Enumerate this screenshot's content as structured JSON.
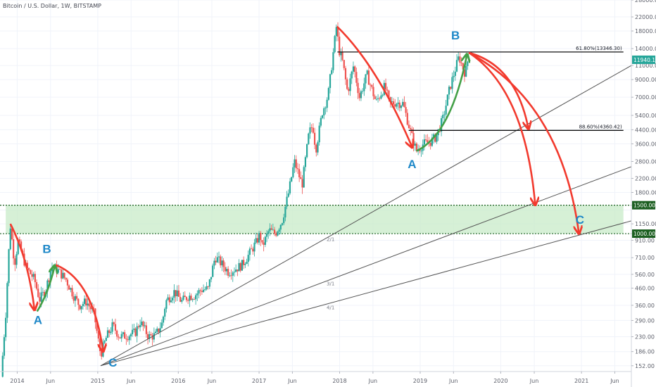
{
  "header": {
    "title": "Bitcoin / U.S. Dollar, 1W, BITSTAMP"
  },
  "colors": {
    "up": "#26a69a",
    "down": "#ef5350",
    "wave_label": "#1e88c8",
    "arrow_red": "#f23a2e",
    "arrow_green": "#43a047",
    "zone_fill": "#c8ebc8",
    "badge_green": "#1b5e20",
    "fan_line": "#555555"
  },
  "chart_data": {
    "type": "candlestick",
    "symbol": "Bitcoin / U.S. Dollar",
    "interval": "1W",
    "exchange": "BITSTAMP",
    "y_scale": "log",
    "ylim": [
      140,
      28000
    ],
    "xlim": [
      "2013-10-15",
      "2021-08-15"
    ],
    "y_ticks": [
      "28000.00",
      "22000.00",
      "18000.00",
      "14000.00",
      "11000.00",
      "9000.00",
      "7000.00",
      "5400.00",
      "4400.00",
      "3600.00",
      "2800.00",
      "2200.00",
      "1800.00",
      "1400.00",
      "1150.00",
      "910.00",
      "710.00",
      "560.00",
      "460.00",
      "360.00",
      "290.00",
      "230.00",
      "186.00",
      "152.00"
    ],
    "x_ticks": [
      {
        "date": "2014-01-01",
        "label": "2014"
      },
      {
        "date": "2014-06-01",
        "label": "Jun"
      },
      {
        "date": "2015-01-01",
        "label": "2015"
      },
      {
        "date": "2015-06-01",
        "label": "Jun"
      },
      {
        "date": "2016-01-01",
        "label": "2016"
      },
      {
        "date": "2016-06-01",
        "label": "Jun"
      },
      {
        "date": "2017-01-01",
        "label": "2017"
      },
      {
        "date": "2017-06-01",
        "label": "Jun"
      },
      {
        "date": "2018-01-01",
        "label": "2018"
      },
      {
        "date": "2018-06-01",
        "label": "Jun"
      },
      {
        "date": "2019-01-01",
        "label": "2019"
      },
      {
        "date": "2019-06-01",
        "label": "Jun"
      },
      {
        "date": "2020-01-01",
        "label": "2020"
      },
      {
        "date": "2020-06-01",
        "label": "Jun"
      },
      {
        "date": "2021-01-01",
        "label": "2021"
      },
      {
        "date": "2021-06-01",
        "label": "Jun"
      }
    ],
    "price_path": [
      [
        "2013-10-20",
        130
      ],
      [
        "2013-11-10",
        320
      ],
      [
        "2013-11-30",
        1150
      ],
      [
        "2013-12-20",
        650
      ],
      [
        "2014-01-05",
        900
      ],
      [
        "2014-02-10",
        620
      ],
      [
        "2014-03-20",
        520
      ],
      [
        "2014-04-12",
        390
      ],
      [
        "2014-05-10",
        450
      ],
      [
        "2014-06-05",
        620
      ],
      [
        "2014-07-01",
        600
      ],
      [
        "2014-08-10",
        520
      ],
      [
        "2014-09-15",
        410
      ],
      [
        "2014-10-10",
        360
      ],
      [
        "2014-11-10",
        380
      ],
      [
        "2014-12-15",
        320
      ],
      [
        "2015-01-14",
        178
      ],
      [
        "2015-02-10",
        230
      ],
      [
        "2015-03-10",
        270
      ],
      [
        "2015-04-10",
        230
      ],
      [
        "2015-05-20",
        235
      ],
      [
        "2015-06-20",
        245
      ],
      [
        "2015-07-12",
        285
      ],
      [
        "2015-08-20",
        230
      ],
      [
        "2015-09-20",
        235
      ],
      [
        "2015-10-20",
        280
      ],
      [
        "2015-11-05",
        380
      ],
      [
        "2015-12-15",
        440
      ],
      [
        "2016-01-15",
        380
      ],
      [
        "2016-02-15",
        410
      ],
      [
        "2016-03-15",
        415
      ],
      [
        "2016-04-15",
        450
      ],
      [
        "2016-05-15",
        455
      ],
      [
        "2016-06-16",
        720
      ],
      [
        "2016-07-15",
        650
      ],
      [
        "2016-08-15",
        580
      ],
      [
        "2016-09-15",
        605
      ],
      [
        "2016-10-15",
        640
      ],
      [
        "2016-11-15",
        740
      ],
      [
        "2016-12-20",
        890
      ],
      [
        "2017-01-05",
        1000
      ],
      [
        "2017-01-15",
        830
      ],
      [
        "2017-02-15",
        1050
      ],
      [
        "2017-03-15",
        1000
      ],
      [
        "2017-04-15",
        1200
      ],
      [
        "2017-05-15",
        1800
      ],
      [
        "2017-06-10",
        2800
      ],
      [
        "2017-07-15",
        2000
      ],
      [
        "2017-08-15",
        4200
      ],
      [
        "2017-09-01",
        4700
      ],
      [
        "2017-09-15",
        3300
      ],
      [
        "2017-10-15",
        5700
      ],
      [
        "2017-11-10",
        7200
      ],
      [
        "2017-12-17",
        19000
      ],
      [
        "2017-12-31",
        13500
      ],
      [
        "2018-01-15",
        11500
      ],
      [
        "2018-02-06",
        7500
      ],
      [
        "2018-03-05",
        11000
      ],
      [
        "2018-04-01",
        7000
      ],
      [
        "2018-05-05",
        9700
      ],
      [
        "2018-06-15",
        6500
      ],
      [
        "2018-07-25",
        8200
      ],
      [
        "2018-08-15",
        6400
      ],
      [
        "2018-09-15",
        6500
      ],
      [
        "2018-10-15",
        6400
      ],
      [
        "2018-11-20",
        4200
      ],
      [
        "2018-12-15",
        3250
      ],
      [
        "2019-01-15",
        3600
      ],
      [
        "2019-02-15",
        3700
      ],
      [
        "2019-03-15",
        4000
      ],
      [
        "2019-04-15",
        5200
      ],
      [
        "2019-05-15",
        8000
      ],
      [
        "2019-06-26",
        12500
      ],
      [
        "2019-07-15",
        10500
      ],
      [
        "2019-07-25",
        9800
      ],
      [
        "2019-08-05",
        11900
      ]
    ],
    "levels": [
      {
        "label": "61.80%(13346.30)",
        "price": 13346.3,
        "from": "2017-12-22",
        "to": "2021-07-10"
      },
      {
        "label": "88.60%(4360.42)",
        "price": 4360.42,
        "from": "2018-11-10",
        "to": "2021-07-10"
      }
    ],
    "zone": {
      "from": "2013-11-10",
      "to": "2021-07-10",
      "low": 1000,
      "high": 1500
    },
    "dashed_levels": [
      1500,
      1000
    ],
    "price_badges": [
      {
        "label": "11940.10",
        "price": 11940.1
      },
      {
        "label": "1500.00",
        "price": 1500
      },
      {
        "label": "1000.00",
        "price": 1000
      }
    ],
    "fan": {
      "origin": [
        "2015-01-14",
        152
      ],
      "lines": [
        {
          "label": "2/1",
          "to": [
            "2021-08-15",
            11000
          ]
        },
        {
          "label": "3/1",
          "to": [
            "2021-08-15",
            2600
          ]
        },
        {
          "label": "4/1",
          "to": [
            "2021-08-15",
            1200
          ]
        }
      ]
    },
    "wave_labels": [
      {
        "text": "A",
        "date": "2014-04-05",
        "price": 275
      },
      {
        "text": "B",
        "date": "2014-05-15",
        "price": 760
      },
      {
        "text": "C",
        "date": "2015-03-10",
        "price": 150
      },
      {
        "text": "A",
        "date": "2018-11-25",
        "price": 2550
      },
      {
        "text": "B",
        "date": "2019-06-10",
        "price": 16000
      },
      {
        "text": "C",
        "date": "2020-12-25",
        "price": 1150
      }
    ]
  }
}
